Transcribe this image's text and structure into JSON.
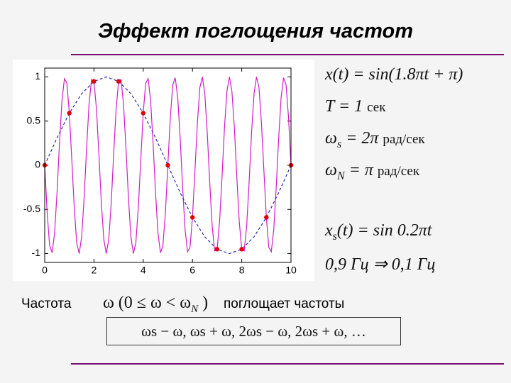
{
  "title": "Эффект поглощения частот",
  "chart_data": {
    "type": "line",
    "xlim": [
      0,
      10
    ],
    "ylim": [
      -1.1,
      1.1
    ],
    "xticks": [
      0,
      2,
      4,
      6,
      8,
      10
    ],
    "yticks": [
      -1,
      -0.5,
      0,
      0.5,
      1
    ],
    "series": [
      {
        "color": "#d21cc8",
        "style": "solid",
        "x": [
          0,
          0.1,
          0.2,
          0.3,
          0.4,
          0.5,
          0.6,
          0.7,
          0.8,
          0.9,
          1,
          1.1,
          1.2,
          1.3,
          1.4,
          1.5,
          1.6,
          1.7,
          1.8,
          1.9,
          2,
          2.1,
          2.2,
          2.3,
          2.4,
          2.5,
          2.6,
          2.7,
          2.8,
          2.9,
          3,
          3.1,
          3.2,
          3.3,
          3.4,
          3.5,
          3.6,
          3.7,
          3.8,
          3.9,
          4,
          4.1,
          4.2,
          4.3,
          4.4,
          4.5,
          4.6,
          4.7,
          4.8,
          4.9,
          5,
          5.1,
          5.2,
          5.3,
          5.4,
          5.5,
          5.6,
          5.7,
          5.8,
          5.9,
          6,
          6.1,
          6.2,
          6.3,
          6.4,
          6.5,
          6.6,
          6.7,
          6.8,
          6.9,
          7,
          7.1,
          7.2,
          7.3,
          7.4,
          7.5,
          7.6,
          7.7,
          7.8,
          7.9,
          8,
          8.1,
          8.2,
          8.3,
          8.4,
          8.5,
          8.6,
          8.7,
          8.8,
          8.9,
          9,
          9.1,
          9.2,
          9.3,
          9.4,
          9.5,
          9.6,
          9.7,
          9.8,
          9.9,
          10
        ],
        "values": [
          0,
          -0.54,
          -0.91,
          -0.99,
          -0.77,
          -0.31,
          0.25,
          0.73,
          0.98,
          0.93,
          0.59,
          0.06,
          -0.48,
          -0.88,
          -1,
          -0.81,
          -0.37,
          0.19,
          0.69,
          0.97,
          0.95,
          0.64,
          0.13,
          -0.43,
          -0.84,
          -1,
          -0.84,
          -0.43,
          0.13,
          0.64,
          0.95,
          0.97,
          0.69,
          0.19,
          -0.37,
          -0.81,
          -1,
          -0.88,
          -0.48,
          0.06,
          0.59,
          0.93,
          0.98,
          0.73,
          0.25,
          -0.31,
          -0.77,
          -0.99,
          -0.91,
          -0.54,
          0,
          0.54,
          0.91,
          0.99,
          0.77,
          0.31,
          -0.25,
          -0.73,
          -0.98,
          -0.93,
          -0.59,
          -0.06,
          0.48,
          0.88,
          1,
          0.81,
          0.37,
          -0.19,
          -0.69,
          -0.97,
          -0.95,
          -0.64,
          -0.13,
          0.43,
          0.84,
          1,
          0.84,
          0.43,
          -0.13,
          -0.64,
          -0.95,
          -0.97,
          -0.69,
          -0.19,
          0.37,
          0.81,
          1,
          0.88,
          0.48,
          -0.06,
          -0.59,
          -0.93,
          -0.98,
          -0.73,
          -0.25,
          0.31,
          0.77,
          0.99,
          0.91,
          0.54,
          0
        ]
      },
      {
        "color": "#2828b4",
        "style": "dashed",
        "x": [
          0,
          0.5,
          1,
          1.5,
          2,
          2.5,
          3,
          3.5,
          4,
          4.5,
          5,
          5.5,
          6,
          6.5,
          7,
          7.5,
          8,
          8.5,
          9,
          9.5,
          10
        ],
        "values": [
          0,
          0.31,
          0.59,
          0.81,
          0.95,
          1,
          0.95,
          0.81,
          0.59,
          0.31,
          0,
          -0.31,
          -0.59,
          -0.81,
          -0.95,
          -1,
          -0.95,
          -0.81,
          -0.59,
          -0.31,
          0
        ]
      },
      {
        "color": "#e00000",
        "style": "markers",
        "x": [
          0,
          1,
          2,
          3,
          4,
          5,
          6,
          7,
          8,
          9,
          10
        ],
        "values": [
          0,
          0.59,
          0.95,
          0.95,
          0.59,
          0,
          -0.59,
          -0.95,
          -0.95,
          -0.59,
          0
        ]
      }
    ]
  },
  "formulas": [
    {
      "parts": [
        {
          "text": "x(t) = sin(1.8πt + π)"
        }
      ]
    },
    {
      "parts": [
        {
          "text": "T = 1 "
        },
        {
          "text": "сек",
          "small": true
        }
      ]
    },
    {
      "parts": [
        {
          "text": "ω"
        },
        {
          "text": "s",
          "sub": true
        },
        {
          "text": " = 2π "
        },
        {
          "text": "рад/сек",
          "small": true
        }
      ]
    },
    {
      "parts": [
        {
          "text": "ω"
        },
        {
          "text": "N",
          "sub": true
        },
        {
          "text": " = π   "
        },
        {
          "text": "рад/сек",
          "small": true
        }
      ]
    },
    {
      "parts": [
        {
          "text": "x"
        },
        {
          "text": "s",
          "sub": true
        },
        {
          "text": "(t) = sin 0.2πt"
        }
      ]
    },
    {
      "parts": [
        {
          "text": "0,9 Гц  ⇒  0,1 Гц"
        }
      ]
    }
  ],
  "bottom": {
    "label": "Частота",
    "formula": "ω (0 ≤ ω < ω",
    "formula_sub": "N",
    "formula_end": ")",
    "text": "поглощает частоты",
    "boxed": "ωs − ω,  ωs + ω,  2ωs − ω,  2ωs + ω,  …"
  }
}
